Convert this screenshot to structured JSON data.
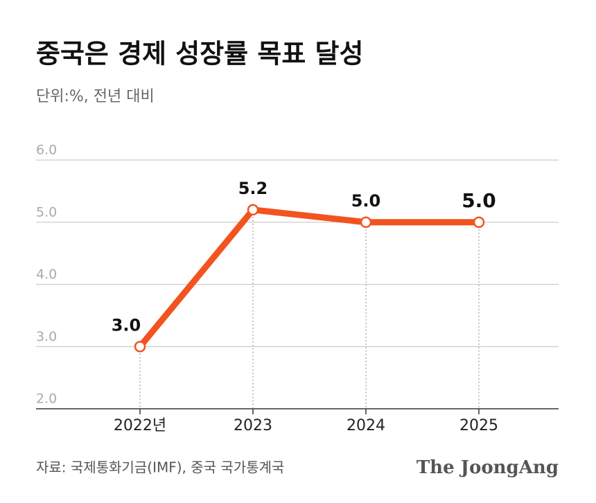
{
  "chart_data": {
    "type": "line",
    "title": "중국은 경제 성장률 목표 달성",
    "subtitle": "단위:%, 전년 대비",
    "categories": [
      "2022년",
      "2023",
      "2024",
      "2025"
    ],
    "values": [
      3.0,
      5.2,
      5.0,
      5.0
    ],
    "value_labels": [
      "3.0",
      "5.2",
      "5.0",
      "5.0"
    ],
    "color": "#f2531f",
    "ylim": [
      2,
      6
    ],
    "yticks": [
      {
        "value": 2,
        "label": "2.0"
      },
      {
        "value": 3,
        "label": "3.0"
      },
      {
        "value": 4,
        "label": "4.0"
      },
      {
        "value": 5,
        "label": "5.0"
      },
      {
        "value": 6,
        "label": "6.0"
      }
    ],
    "grid": true,
    "source": "자료: 국제통화기금(IMF), 중국 국가통계국",
    "logo": "The JoongAng"
  }
}
